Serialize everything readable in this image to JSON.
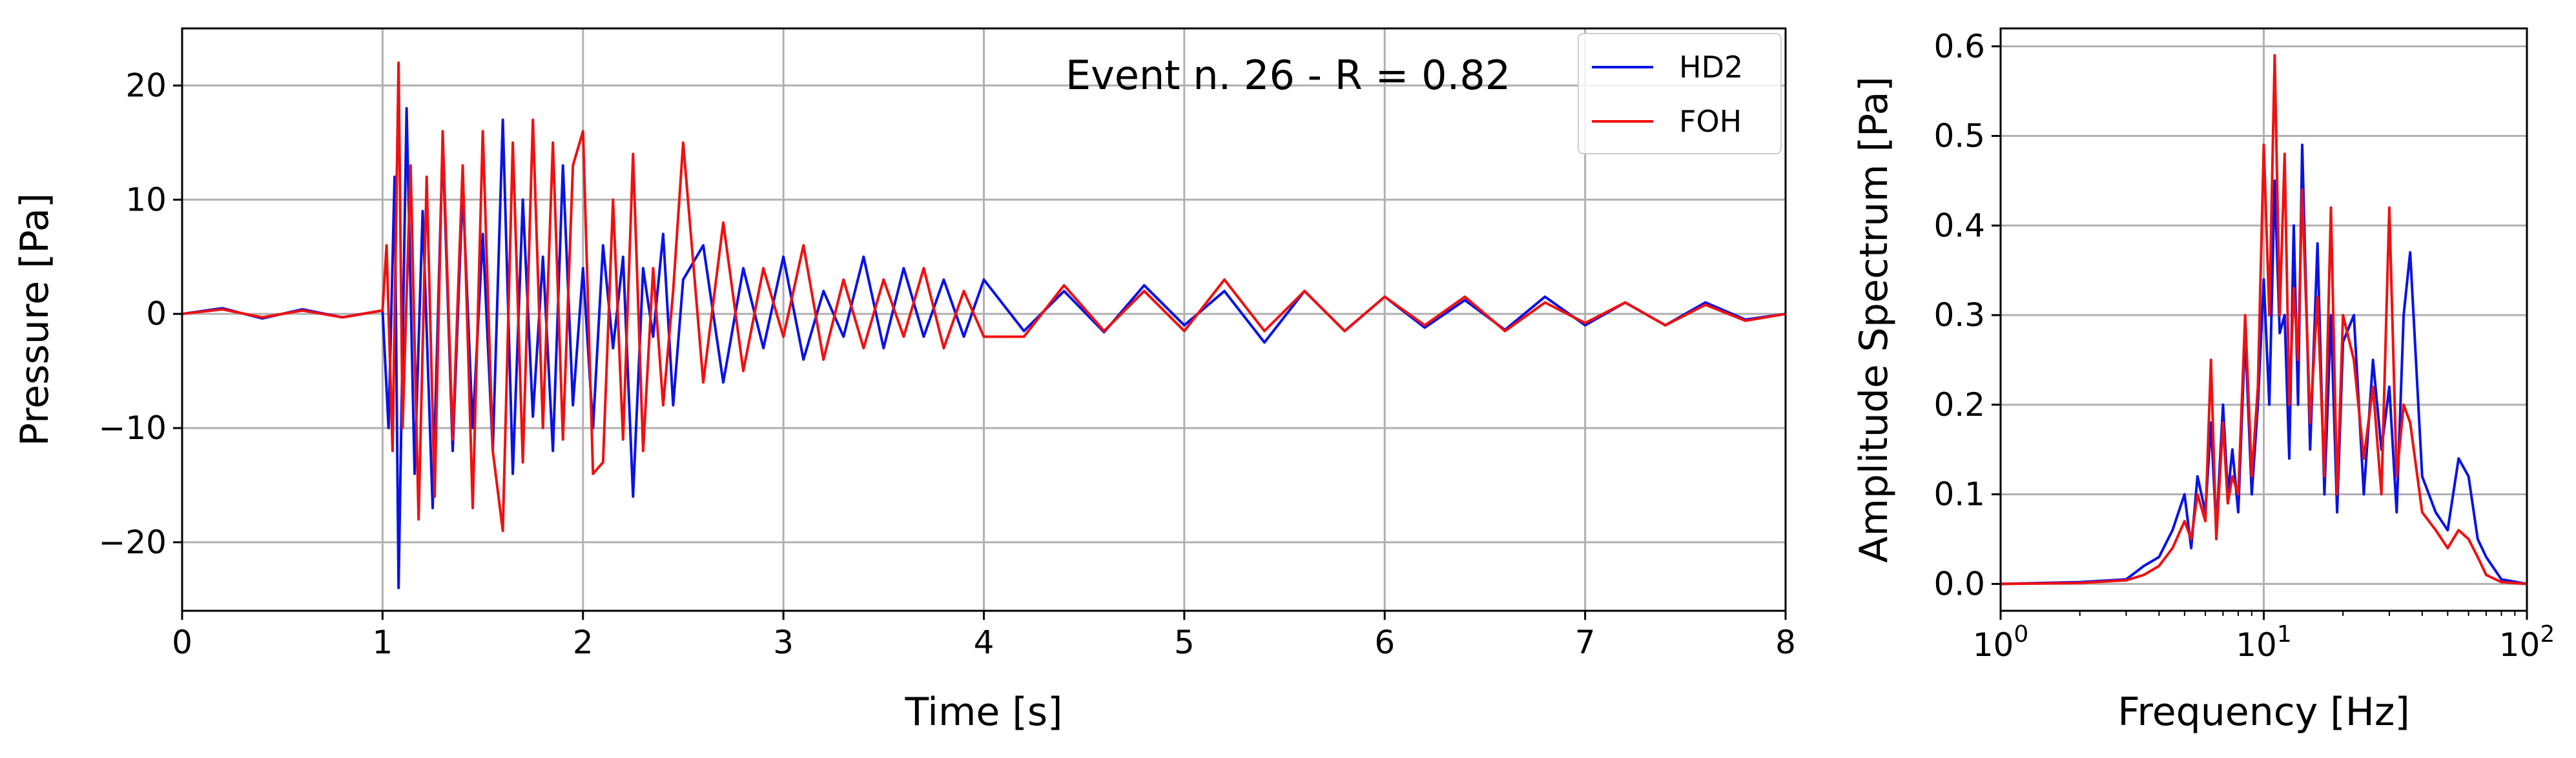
{
  "colors": {
    "hd2": "#0a12e6",
    "foh": "#f01010",
    "grid": "#b0b0b0",
    "axis": "#000000"
  },
  "chart_data": [
    {
      "type": "line",
      "title": "",
      "annotation": "Event n. 26 - R = 0.82",
      "xlabel": "Time [s]",
      "ylabel": "Pressure [Pa]",
      "xlim": [
        0,
        8
      ],
      "ylim": [
        -26,
        25
      ],
      "xticks": [
        0,
        1,
        2,
        3,
        4,
        5,
        6,
        7,
        8
      ],
      "xtick_labels": [
        "0",
        "1",
        "2",
        "3",
        "4",
        "5",
        "6",
        "7",
        "8"
      ],
      "yticks": [
        -20,
        -10,
        0,
        10,
        20
      ],
      "ytick_labels": [
        "−20",
        "−10",
        "0",
        "10",
        "20"
      ],
      "grid": true,
      "legend": {
        "placement": "top-right",
        "entries": [
          "HD2",
          "FOH"
        ]
      },
      "series": [
        {
          "name": "HD2",
          "x": [
            0.0,
            0.2,
            0.4,
            0.6,
            0.8,
            1.0,
            1.03,
            1.06,
            1.08,
            1.12,
            1.16,
            1.2,
            1.25,
            1.3,
            1.35,
            1.4,
            1.45,
            1.5,
            1.55,
            1.6,
            1.65,
            1.7,
            1.75,
            1.8,
            1.85,
            1.9,
            1.95,
            2.0,
            2.05,
            2.1,
            2.15,
            2.2,
            2.25,
            2.3,
            2.35,
            2.4,
            2.45,
            2.5,
            2.6,
            2.7,
            2.8,
            2.9,
            3.0,
            3.1,
            3.2,
            3.3,
            3.4,
            3.5,
            3.6,
            3.7,
            3.8,
            3.9,
            4.0,
            4.2,
            4.4,
            4.6,
            4.8,
            5.0,
            5.2,
            5.4,
            5.6,
            5.8,
            6.0,
            6.2,
            6.4,
            6.6,
            6.8,
            7.0,
            7.2,
            7.4,
            7.6,
            7.8,
            8.0
          ],
          "y": [
            0.0,
            0.5,
            -0.4,
            0.4,
            -0.3,
            0.3,
            -10,
            12,
            -24,
            18,
            -14,
            9,
            -17,
            15,
            -12,
            11,
            -10,
            7,
            -12,
            17,
            -14,
            10,
            -9,
            5,
            -12,
            13,
            -8,
            4,
            -10,
            6,
            -3,
            5,
            -16,
            4,
            -2,
            7,
            -8,
            3,
            6,
            -6,
            4,
            -3,
            5,
            -4,
            2,
            -2,
            5,
            -3,
            4,
            -2,
            3,
            -2,
            3,
            -1.5,
            2,
            -1.6,
            2.5,
            -1,
            2,
            -2.5,
            2,
            -1.5,
            1.5,
            -1.2,
            1.2,
            -1.4,
            1.5,
            -1,
            1,
            -1,
            1,
            -0.5,
            0
          ]
        },
        {
          "name": "FOH",
          "x": [
            0.0,
            0.2,
            0.4,
            0.6,
            0.8,
            1.0,
            1.02,
            1.05,
            1.08,
            1.1,
            1.14,
            1.18,
            1.22,
            1.26,
            1.3,
            1.35,
            1.4,
            1.45,
            1.5,
            1.55,
            1.6,
            1.65,
            1.7,
            1.75,
            1.8,
            1.85,
            1.9,
            1.95,
            2.0,
            2.05,
            2.1,
            2.15,
            2.2,
            2.25,
            2.3,
            2.35,
            2.4,
            2.45,
            2.5,
            2.6,
            2.7,
            2.8,
            2.9,
            3.0,
            3.1,
            3.2,
            3.3,
            3.4,
            3.5,
            3.6,
            3.7,
            3.8,
            3.9,
            4.0,
            4.2,
            4.4,
            4.6,
            4.8,
            5.0,
            5.2,
            5.4,
            5.6,
            5.8,
            6.0,
            6.2,
            6.4,
            6.6,
            6.8,
            7.0,
            7.2,
            7.4,
            7.6,
            7.8,
            8.0
          ],
          "y": [
            0.0,
            0.4,
            -0.3,
            0.3,
            -0.3,
            0.3,
            6,
            -12,
            22,
            -10,
            13,
            -18,
            12,
            -16,
            16,
            -11,
            13,
            -17,
            16,
            -12,
            -19,
            15,
            -13,
            17,
            -10,
            15,
            -11,
            13,
            16,
            -14,
            -13,
            10,
            -11,
            14,
            -12,
            4,
            -8,
            2,
            15,
            -6,
            8,
            -5,
            4,
            -2,
            6,
            -4,
            3,
            -3,
            3,
            -2,
            4,
            -3,
            2,
            -2,
            -2,
            2.5,
            -1.5,
            2,
            -1.5,
            3,
            -1.5,
            2,
            -1.5,
            1.5,
            -1,
            1.5,
            -1.5,
            1,
            -0.8,
            1,
            -1,
            0.8,
            -0.6,
            0
          ]
        }
      ]
    },
    {
      "type": "line",
      "title": "",
      "xlabel": "Frequency [Hz]",
      "ylabel": "Amplitude Spectrum [Pa]",
      "xscale": "log",
      "xlim": [
        1,
        100
      ],
      "ylim": [
        -0.03,
        0.62
      ],
      "xticks": [
        1,
        10,
        100
      ],
      "xtick_labels": [
        {
          "base": "10",
          "exp": "0"
        },
        {
          "base": "10",
          "exp": "1"
        },
        {
          "base": "10",
          "exp": "2"
        }
      ],
      "yticks": [
        0.0,
        0.1,
        0.2,
        0.3,
        0.4,
        0.5,
        0.6
      ],
      "ytick_labels": [
        "0.0",
        "0.1",
        "0.2",
        "0.3",
        "0.4",
        "0.5",
        "0.6"
      ],
      "grid": true,
      "series": [
        {
          "name": "HD2",
          "x": [
            1,
            2,
            3,
            3.5,
            4,
            4.5,
            5,
            5.3,
            5.6,
            6,
            6.3,
            6.6,
            7,
            7.3,
            7.6,
            8,
            8.5,
            9,
            9.5,
            10,
            10.5,
            11,
            11.5,
            12,
            12.5,
            13,
            13.5,
            14,
            15,
            16,
            17,
            18,
            19,
            20,
            22,
            24,
            26,
            28,
            30,
            32,
            34,
            36,
            40,
            45,
            50,
            55,
            60,
            65,
            70,
            80,
            100
          ],
          "y": [
            0,
            0.002,
            0.005,
            0.02,
            0.03,
            0.06,
            0.1,
            0.04,
            0.12,
            0.08,
            0.18,
            0.06,
            0.2,
            0.1,
            0.15,
            0.08,
            0.28,
            0.1,
            0.2,
            0.34,
            0.2,
            0.45,
            0.28,
            0.3,
            0.14,
            0.4,
            0.2,
            0.49,
            0.15,
            0.38,
            0.1,
            0.3,
            0.08,
            0.27,
            0.3,
            0.1,
            0.25,
            0.15,
            0.22,
            0.08,
            0.3,
            0.37,
            0.12,
            0.08,
            0.06,
            0.14,
            0.12,
            0.05,
            0.03,
            0.005,
            0
          ]
        },
        {
          "name": "FOH",
          "x": [
            1,
            2,
            3,
            3.5,
            4,
            4.5,
            5,
            5.3,
            5.6,
            6,
            6.3,
            6.6,
            7,
            7.3,
            7.6,
            8,
            8.5,
            9,
            9.5,
            10,
            10.5,
            11,
            11.5,
            12,
            12.5,
            13,
            13.5,
            14,
            15,
            16,
            17,
            18,
            19,
            20,
            22,
            24,
            26,
            28,
            30,
            32,
            34,
            36,
            40,
            45,
            50,
            55,
            60,
            65,
            70,
            80,
            100
          ],
          "y": [
            0,
            0.001,
            0.004,
            0.01,
            0.02,
            0.04,
            0.07,
            0.05,
            0.1,
            0.07,
            0.25,
            0.05,
            0.18,
            0.09,
            0.12,
            0.1,
            0.3,
            0.12,
            0.22,
            0.49,
            0.3,
            0.59,
            0.3,
            0.48,
            0.2,
            0.33,
            0.25,
            0.44,
            0.18,
            0.32,
            0.12,
            0.42,
            0.1,
            0.3,
            0.25,
            0.14,
            0.22,
            0.1,
            0.42,
            0.12,
            0.2,
            0.18,
            0.08,
            0.06,
            0.04,
            0.06,
            0.05,
            0.03,
            0.01,
            0.002,
            0
          ]
        }
      ]
    }
  ]
}
